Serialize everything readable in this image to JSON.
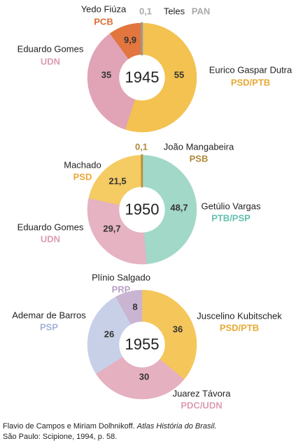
{
  "chart_data": [
    {
      "type": "donut",
      "center_label": "1945",
      "categories": [
        "Eurico Gaspar Dutra",
        "Eduardo Gomes",
        "Yedo Fiúza",
        "Teles"
      ],
      "parties": [
        "PSD/PTB",
        "UDN",
        "PCB",
        "PAN"
      ],
      "values": [
        55,
        35,
        9.9,
        0.1
      ],
      "value_labels": [
        "55",
        "35",
        "9,9",
        "0,1"
      ],
      "colors": [
        "#f3c250",
        "#e0a4b6",
        "#e2763e",
        "#9a9a9a"
      ],
      "party_colors": [
        "#e8a935",
        "#dc9cb4",
        "#dc6f36",
        "#a8a8a8"
      ]
    },
    {
      "type": "donut",
      "center_label": "1950",
      "categories": [
        "Getúlio Vargas",
        "Eduardo Gomes",
        "Machado",
        "João Mangabeira"
      ],
      "parties": [
        "PTB/PSP",
        "UDN",
        "PSD",
        "PSB"
      ],
      "values": [
        48.7,
        29.7,
        21.5,
        0.1
      ],
      "value_labels": [
        "48,7",
        "29,7",
        "21,5",
        "0,1"
      ],
      "colors": [
        "#a2d8c8",
        "#e5b3c2",
        "#f5cb63",
        "#b8903e"
      ],
      "party_colors": [
        "#62c0b0",
        "#dc9cb4",
        "#e8a935",
        "#b08a3a"
      ]
    },
    {
      "type": "donut",
      "center_label": "1955",
      "categories": [
        "Juscelino Kubitschek",
        "Juarez Távora",
        "Ademar de Barros",
        "Plínio Salgado"
      ],
      "parties": [
        "PSD/PTB",
        "PDC/UDN",
        "PSP",
        "PRP"
      ],
      "values": [
        36,
        30,
        26,
        8
      ],
      "colors": [
        "#f5c65a",
        "#e5b0c0",
        "#c8d0e8",
        "#c9b5d2"
      ],
      "party_colors": [
        "#e8a935",
        "#dc9cb4",
        "#a4b2da",
        "#b8a0c4"
      ]
    }
  ],
  "source": {
    "authors": "Flavio de Campos e Miriam Dolhnikoff.",
    "title": "Atlas História do Brasil.",
    "publisher": "São Paulo: Scipione, 1994, p. 58."
  }
}
